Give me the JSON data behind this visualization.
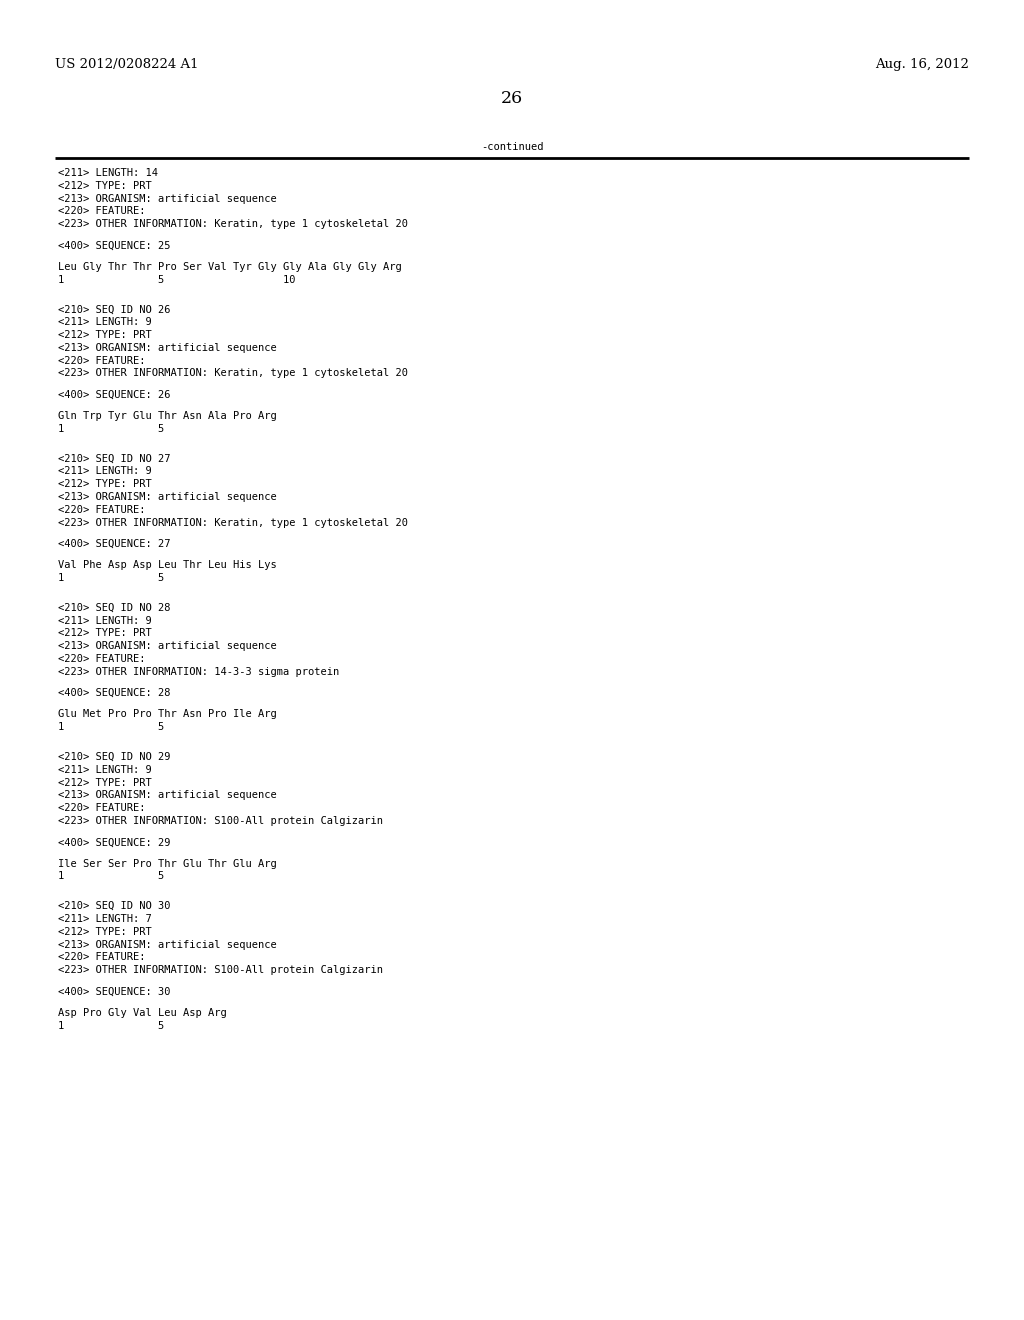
{
  "header_left": "US 2012/0208224 A1",
  "header_right": "Aug. 16, 2012",
  "page_number": "26",
  "continued_label": "-continued",
  "background_color": "#ffffff",
  "text_color": "#000000",
  "font_size_header": 9.5,
  "font_size_body": 7.5,
  "font_size_page": 12.5,
  "lines": [
    "<211> LENGTH: 14",
    "<212> TYPE: PRT",
    "<213> ORGANISM: artificial sequence",
    "<220> FEATURE:",
    "<223> OTHER INFORMATION: Keratin, type 1 cytoskeletal 20",
    "",
    "<400> SEQUENCE: 25",
    "",
    "Leu Gly Thr Thr Pro Ser Val Tyr Gly Gly Ala Gly Gly Arg",
    "1               5                   10",
    "",
    "",
    "<210> SEQ ID NO 26",
    "<211> LENGTH: 9",
    "<212> TYPE: PRT",
    "<213> ORGANISM: artificial sequence",
    "<220> FEATURE:",
    "<223> OTHER INFORMATION: Keratin, type 1 cytoskeletal 20",
    "",
    "<400> SEQUENCE: 26",
    "",
    "Gln Trp Tyr Glu Thr Asn Ala Pro Arg",
    "1               5",
    "",
    "",
    "<210> SEQ ID NO 27",
    "<211> LENGTH: 9",
    "<212> TYPE: PRT",
    "<213> ORGANISM: artificial sequence",
    "<220> FEATURE:",
    "<223> OTHER INFORMATION: Keratin, type 1 cytoskeletal 20",
    "",
    "<400> SEQUENCE: 27",
    "",
    "Val Phe Asp Asp Leu Thr Leu His Lys",
    "1               5",
    "",
    "",
    "<210> SEQ ID NO 28",
    "<211> LENGTH: 9",
    "<212> TYPE: PRT",
    "<213> ORGANISM: artificial sequence",
    "<220> FEATURE:",
    "<223> OTHER INFORMATION: 14-3-3 sigma protein",
    "",
    "<400> SEQUENCE: 28",
    "",
    "Glu Met Pro Pro Thr Asn Pro Ile Arg",
    "1               5",
    "",
    "",
    "<210> SEQ ID NO 29",
    "<211> LENGTH: 9",
    "<212> TYPE: PRT",
    "<213> ORGANISM: artificial sequence",
    "<220> FEATURE:",
    "<223> OTHER INFORMATION: S100-All protein Calgizarin",
    "",
    "<400> SEQUENCE: 29",
    "",
    "Ile Ser Ser Pro Thr Glu Thr Glu Arg",
    "1               5",
    "",
    "",
    "<210> SEQ ID NO 30",
    "<211> LENGTH: 7",
    "<212> TYPE: PRT",
    "<213> ORGANISM: artificial sequence",
    "<220> FEATURE:",
    "<223> OTHER INFORMATION: S100-All protein Calgizarin",
    "",
    "<400> SEQUENCE: 30",
    "",
    "Asp Pro Gly Val Leu Asp Arg",
    "1               5"
  ]
}
